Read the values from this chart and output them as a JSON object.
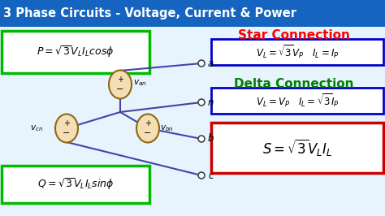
{
  "title": "3 Phase Circuits - Voltage, Current & Power",
  "title_bg": "#1565C0",
  "title_color": "#FFFFFF",
  "bg_color": "#E8F4FD",
  "star_label": "Star Connection",
  "star_color": "#FF0000",
  "delta_label": "Delta Connection",
  "delta_color": "#008000",
  "box_border_green": "#00BB00",
  "box_border_blue": "#0000CC",
  "box_border_red": "#CC0000",
  "ellipse_color": "#F5DEB3",
  "ellipse_border": "#8B6914",
  "wire_color": "#4444AA",
  "node_border": "#555555"
}
